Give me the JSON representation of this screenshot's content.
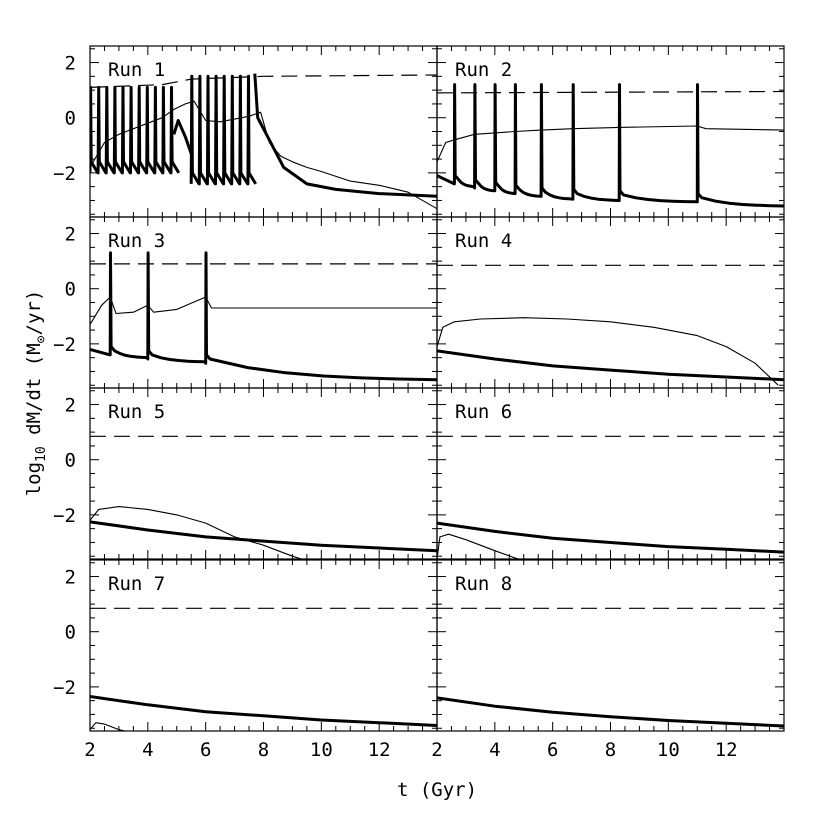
{
  "chart_data": {
    "type": "line",
    "layout": "4x2 panel grid, shared axes",
    "xlabel": "t (Gyr)",
    "ylabel_parts": {
      "pre": "log",
      "sub": "10",
      "post": " dM/dt  (M",
      "sym": "⊙",
      "tail": "/yr)"
    },
    "xlim": [
      2,
      14
    ],
    "ylim": [
      -3.6,
      2.6
    ],
    "xticks_major": [
      2,
      4,
      6,
      8,
      10,
      12
    ],
    "xtick_labels": [
      "2",
      "4",
      "6",
      "8",
      "10",
      "12"
    ],
    "yticks_major": [
      -2,
      0,
      2
    ],
    "ytick_labels": [
      "−2",
      "0",
      "2"
    ],
    "grid": false,
    "legend": "none",
    "colors": {
      "line": "#000000",
      "background": "#ffffff"
    },
    "panels": [
      {
        "label": "Run 1",
        "series": [
          {
            "style": "thick",
            "kind": "bursts",
            "base": -2.0,
            "peak": 1.1,
            "period": 0.28,
            "start": 2.0,
            "end": 4.9
          },
          {
            "style": "thick",
            "points": [
              [
                4.9,
                -0.6
              ],
              [
                5.05,
                -0.1
              ],
              [
                5.3,
                -0.7
              ],
              [
                5.5,
                -1.3
              ]
            ]
          },
          {
            "style": "thick",
            "kind": "bursts",
            "base": -2.4,
            "peak": 1.5,
            "period": 0.28,
            "start": 5.5,
            "end": 7.6
          },
          {
            "style": "thick",
            "kind": "decay",
            "points": [
              [
                7.7,
                1.6
              ],
              [
                7.8,
                0.0
              ],
              [
                8.1,
                -0.6
              ],
              [
                8.7,
                -1.8
              ],
              [
                9.5,
                -2.4
              ],
              [
                10.5,
                -2.6
              ],
              [
                12,
                -2.75
              ],
              [
                14,
                -2.85
              ]
            ]
          },
          {
            "style": "thin",
            "points": [
              [
                2,
                -1.8
              ],
              [
                2.5,
                -0.9
              ],
              [
                3,
                -0.6
              ],
              [
                3.5,
                -0.4
              ],
              [
                4,
                -0.2
              ],
              [
                4.5,
                0.0
              ],
              [
                4.9,
                0.3
              ],
              [
                5.3,
                0.5
              ],
              [
                5.6,
                0.6
              ],
              [
                6,
                -0.1
              ],
              [
                6.5,
                -0.15
              ],
              [
                7,
                -0.05
              ],
              [
                7.5,
                0.05
              ],
              [
                7.9,
                0.2
              ],
              [
                8.2,
                -0.9
              ],
              [
                8.6,
                -1.4
              ],
              [
                9,
                -1.6
              ],
              [
                9.5,
                -1.8
              ],
              [
                10,
                -1.95
              ],
              [
                11,
                -2.3
              ],
              [
                12,
                -2.45
              ],
              [
                13,
                -2.7
              ],
              [
                14,
                -3.3
              ]
            ]
          },
          {
            "style": "dashed",
            "points": [
              [
                2,
                1.1
              ],
              [
                4.5,
                1.2
              ],
              [
                5.5,
                1.4
              ],
              [
                8,
                1.5
              ],
              [
                14,
                1.55
              ]
            ]
          }
        ]
      },
      {
        "label": "Run 2",
        "series": [
          {
            "style": "thick",
            "kind": "episodic",
            "base": -2.1,
            "peak": 1.2,
            "times": [
              2.6,
              3.3,
              4.0,
              4.7,
              5.6,
              6.7,
              8.3,
              11.0
            ],
            "decay_floor": [
              -2.4,
              -2.55,
              -2.65,
              -2.75,
              -2.85,
              -2.9,
              -2.95,
              -3.05
            ],
            "end_value": -3.2
          },
          {
            "style": "thin",
            "points": [
              [
                2,
                -1.6
              ],
              [
                2.3,
                -0.9
              ],
              [
                2.6,
                -0.8
              ],
              [
                3.3,
                -0.6
              ],
              [
                4.0,
                -0.55
              ],
              [
                4.7,
                -0.5
              ],
              [
                5.6,
                -0.45
              ],
              [
                6.7,
                -0.4
              ],
              [
                8.3,
                -0.35
              ],
              [
                11.0,
                -0.3
              ],
              [
                11.3,
                -0.4
              ],
              [
                14,
                -0.45
              ]
            ]
          },
          {
            "style": "dashed",
            "points": [
              [
                2,
                0.9
              ],
              [
                14,
                0.95
              ]
            ]
          }
        ]
      },
      {
        "label": "Run 3",
        "series": [
          {
            "style": "thick",
            "kind": "episodic",
            "base": -2.2,
            "peak": 1.3,
            "times": [
              2.7,
              4.0,
              6.0
            ],
            "decay_floor": [
              -2.4,
              -2.55,
              -2.7
            ],
            "end_value": -3.3
          },
          {
            "style": "thin",
            "points": [
              [
                2,
                -1.3
              ],
              [
                2.4,
                -0.6
              ],
              [
                2.7,
                -0.3
              ],
              [
                2.9,
                -0.9
              ],
              [
                3.5,
                -0.85
              ],
              [
                4.0,
                -0.6
              ],
              [
                4.2,
                -0.85
              ],
              [
                5,
                -0.75
              ],
              [
                6.0,
                -0.3
              ],
              [
                6.2,
                -0.7
              ],
              [
                8,
                -0.7
              ],
              [
                14,
                -0.7
              ]
            ]
          },
          {
            "style": "dashed",
            "points": [
              [
                2,
                0.9
              ],
              [
                14,
                0.9
              ]
            ]
          }
        ]
      },
      {
        "label": "Run 4",
        "series": [
          {
            "style": "thick",
            "points": [
              [
                2,
                -2.25
              ],
              [
                4,
                -2.55
              ],
              [
                6,
                -2.8
              ],
              [
                8,
                -2.95
              ],
              [
                10,
                -3.1
              ],
              [
                12,
                -3.2
              ],
              [
                14,
                -3.3
              ]
            ]
          },
          {
            "style": "thin",
            "points": [
              [
                2,
                -2.1
              ],
              [
                2.2,
                -1.4
              ],
              [
                2.6,
                -1.2
              ],
              [
                3.5,
                -1.1
              ],
              [
                5,
                -1.05
              ],
              [
                6.5,
                -1.1
              ],
              [
                8,
                -1.2
              ],
              [
                9.5,
                -1.4
              ],
              [
                11,
                -1.7
              ],
              [
                12,
                -2.1
              ],
              [
                13,
                -2.7
              ],
              [
                13.8,
                -3.5
              ]
            ]
          },
          {
            "style": "dashed",
            "points": [
              [
                2,
                0.85
              ],
              [
                14,
                0.85
              ]
            ]
          }
        ]
      },
      {
        "label": "Run 5",
        "series": [
          {
            "style": "thick",
            "points": [
              [
                2,
                -2.25
              ],
              [
                4,
                -2.55
              ],
              [
                6,
                -2.8
              ],
              [
                8,
                -2.95
              ],
              [
                10,
                -3.1
              ],
              [
                12,
                -3.2
              ],
              [
                14,
                -3.3
              ]
            ]
          },
          {
            "style": "thin",
            "points": [
              [
                2,
                -2.2
              ],
              [
                2.3,
                -1.8
              ],
              [
                3,
                -1.7
              ],
              [
                4,
                -1.8
              ],
              [
                5,
                -2.0
              ],
              [
                6,
                -2.3
              ],
              [
                7,
                -2.8
              ],
              [
                8,
                -3.1
              ],
              [
                9,
                -3.5
              ],
              [
                9.3,
                -3.6
              ]
            ]
          },
          {
            "style": "dashed",
            "points": [
              [
                2,
                0.85
              ],
              [
                14,
                0.85
              ]
            ]
          }
        ]
      },
      {
        "label": "Run 6",
        "series": [
          {
            "style": "thick",
            "points": [
              [
                2,
                -2.3
              ],
              [
                4,
                -2.6
              ],
              [
                6,
                -2.85
              ],
              [
                8,
                -3.0
              ],
              [
                10,
                -3.15
              ],
              [
                12,
                -3.25
              ],
              [
                14,
                -3.35
              ]
            ]
          },
          {
            "style": "thin",
            "points": [
              [
                2,
                -3.6
              ],
              [
                2.1,
                -2.8
              ],
              [
                2.4,
                -2.7
              ],
              [
                3,
                -2.9
              ],
              [
                3.5,
                -3.1
              ],
              [
                4,
                -3.3
              ],
              [
                4.8,
                -3.6
              ]
            ]
          },
          {
            "style": "dashed",
            "points": [
              [
                2,
                0.85
              ],
              [
                14,
                0.85
              ]
            ]
          }
        ]
      },
      {
        "label": "Run 7",
        "series": [
          {
            "style": "thick",
            "points": [
              [
                2,
                -2.35
              ],
              [
                4,
                -2.65
              ],
              [
                6,
                -2.9
              ],
              [
                8,
                -3.05
              ],
              [
                10,
                -3.2
              ],
              [
                12,
                -3.3
              ],
              [
                14,
                -3.4
              ]
            ]
          },
          {
            "style": "thin",
            "points": [
              [
                2,
                -3.55
              ],
              [
                2.2,
                -3.3
              ],
              [
                2.5,
                -3.35
              ],
              [
                3,
                -3.55
              ],
              [
                3.2,
                -3.6
              ]
            ]
          },
          {
            "style": "dashed",
            "points": [
              [
                2,
                0.85
              ],
              [
                14,
                0.85
              ]
            ]
          }
        ]
      },
      {
        "label": "Run 8",
        "series": [
          {
            "style": "thick",
            "points": [
              [
                2,
                -2.4
              ],
              [
                4,
                -2.7
              ],
              [
                6,
                -2.92
              ],
              [
                8,
                -3.08
              ],
              [
                10,
                -3.22
              ],
              [
                12,
                -3.32
              ],
              [
                14,
                -3.42
              ]
            ]
          },
          {
            "style": "dashed",
            "points": [
              [
                2,
                0.85
              ],
              [
                14,
                0.85
              ]
            ]
          }
        ]
      }
    ]
  }
}
